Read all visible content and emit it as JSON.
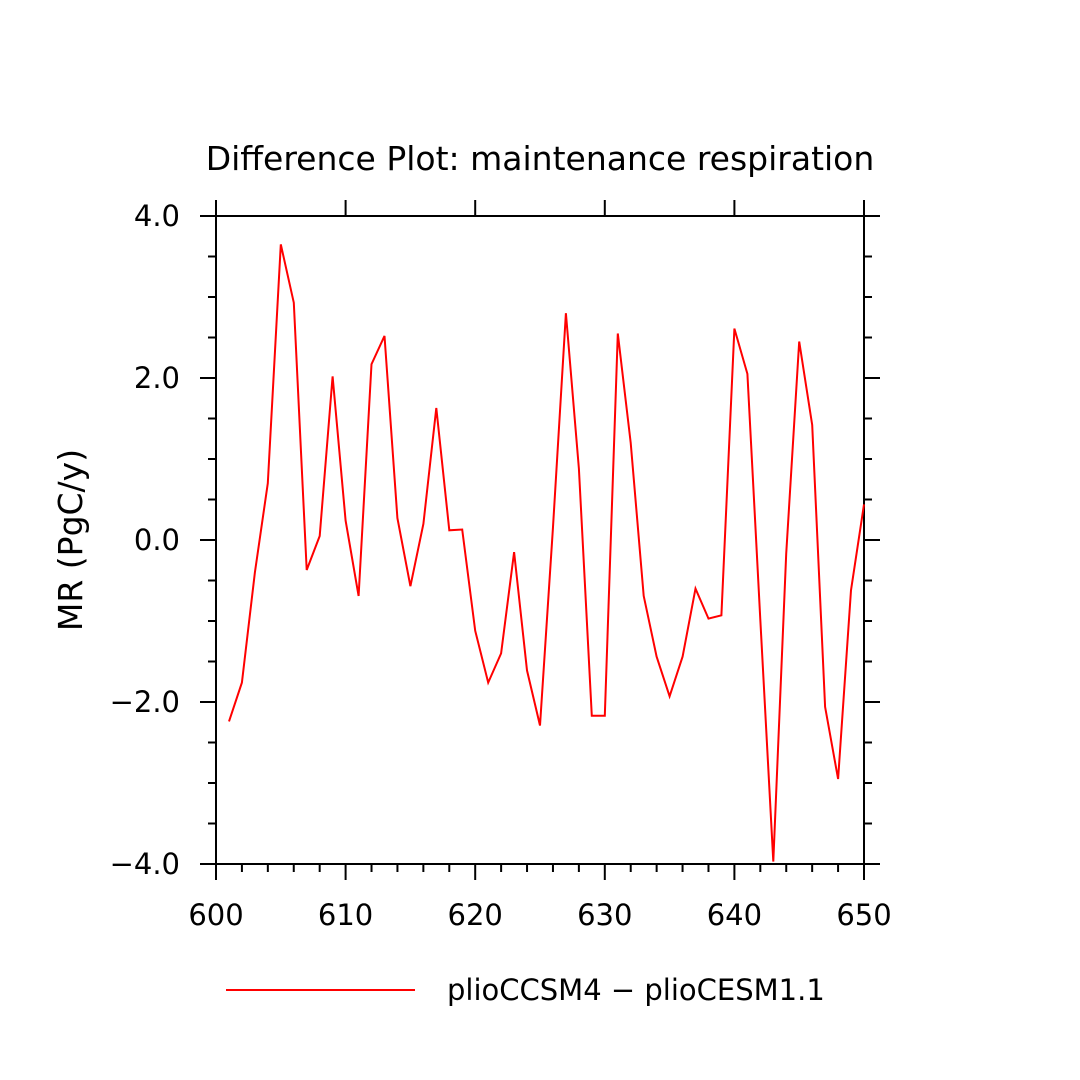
{
  "chart_data": {
    "type": "line",
    "title": "Difference Plot: maintenance respiration",
    "xlabel": "",
    "ylabel": "MR  (PgC/y)",
    "xlim": [
      600,
      650
    ],
    "ylim": [
      -4.0,
      4.0
    ],
    "x_ticks": [
      600,
      610,
      620,
      630,
      640,
      650
    ],
    "x_tick_labels": [
      "600",
      "610",
      "620",
      "630",
      "640",
      "650"
    ],
    "y_ticks": [
      -4.0,
      -2.0,
      0.0,
      2.0,
      4.0
    ],
    "y_tick_labels": [
      "−4.0",
      "−2.0",
      "0.0",
      "2.0",
      "4.0"
    ],
    "grid": false,
    "legend_position": "bottom",
    "series": [
      {
        "name": "plioCCSM4 − plioCESM1.1",
        "color": "#ff0000",
        "x": [
          601,
          602,
          603,
          604,
          605,
          606,
          607,
          608,
          609,
          610,
          611,
          612,
          613,
          614,
          615,
          616,
          617,
          618,
          619,
          620,
          621,
          622,
          623,
          624,
          625,
          626,
          627,
          628,
          629,
          630,
          631,
          632,
          633,
          634,
          635,
          636,
          637,
          638,
          639,
          640,
          641,
          642,
          643,
          644,
          645,
          646,
          647,
          648,
          649,
          650
        ],
        "values": [
          -2.24,
          -1.76,
          -0.4,
          0.7,
          3.65,
          2.93,
          -0.37,
          0.05,
          2.02,
          0.24,
          -0.69,
          2.17,
          2.52,
          0.27,
          -0.57,
          0.2,
          1.63,
          0.12,
          0.13,
          -1.12,
          -1.76,
          -1.4,
          -0.15,
          -1.61,
          -2.29,
          0.16,
          2.8,
          0.88,
          -2.17,
          -2.17,
          2.55,
          1.2,
          -0.69,
          -1.44,
          -1.93,
          -1.44,
          -0.6,
          -0.97,
          -0.93,
          2.61,
          2.05,
          -0.98,
          -3.97,
          -0.17,
          2.45,
          1.42,
          -2.06,
          -2.95,
          -0.62,
          0.44
        ]
      }
    ]
  }
}
